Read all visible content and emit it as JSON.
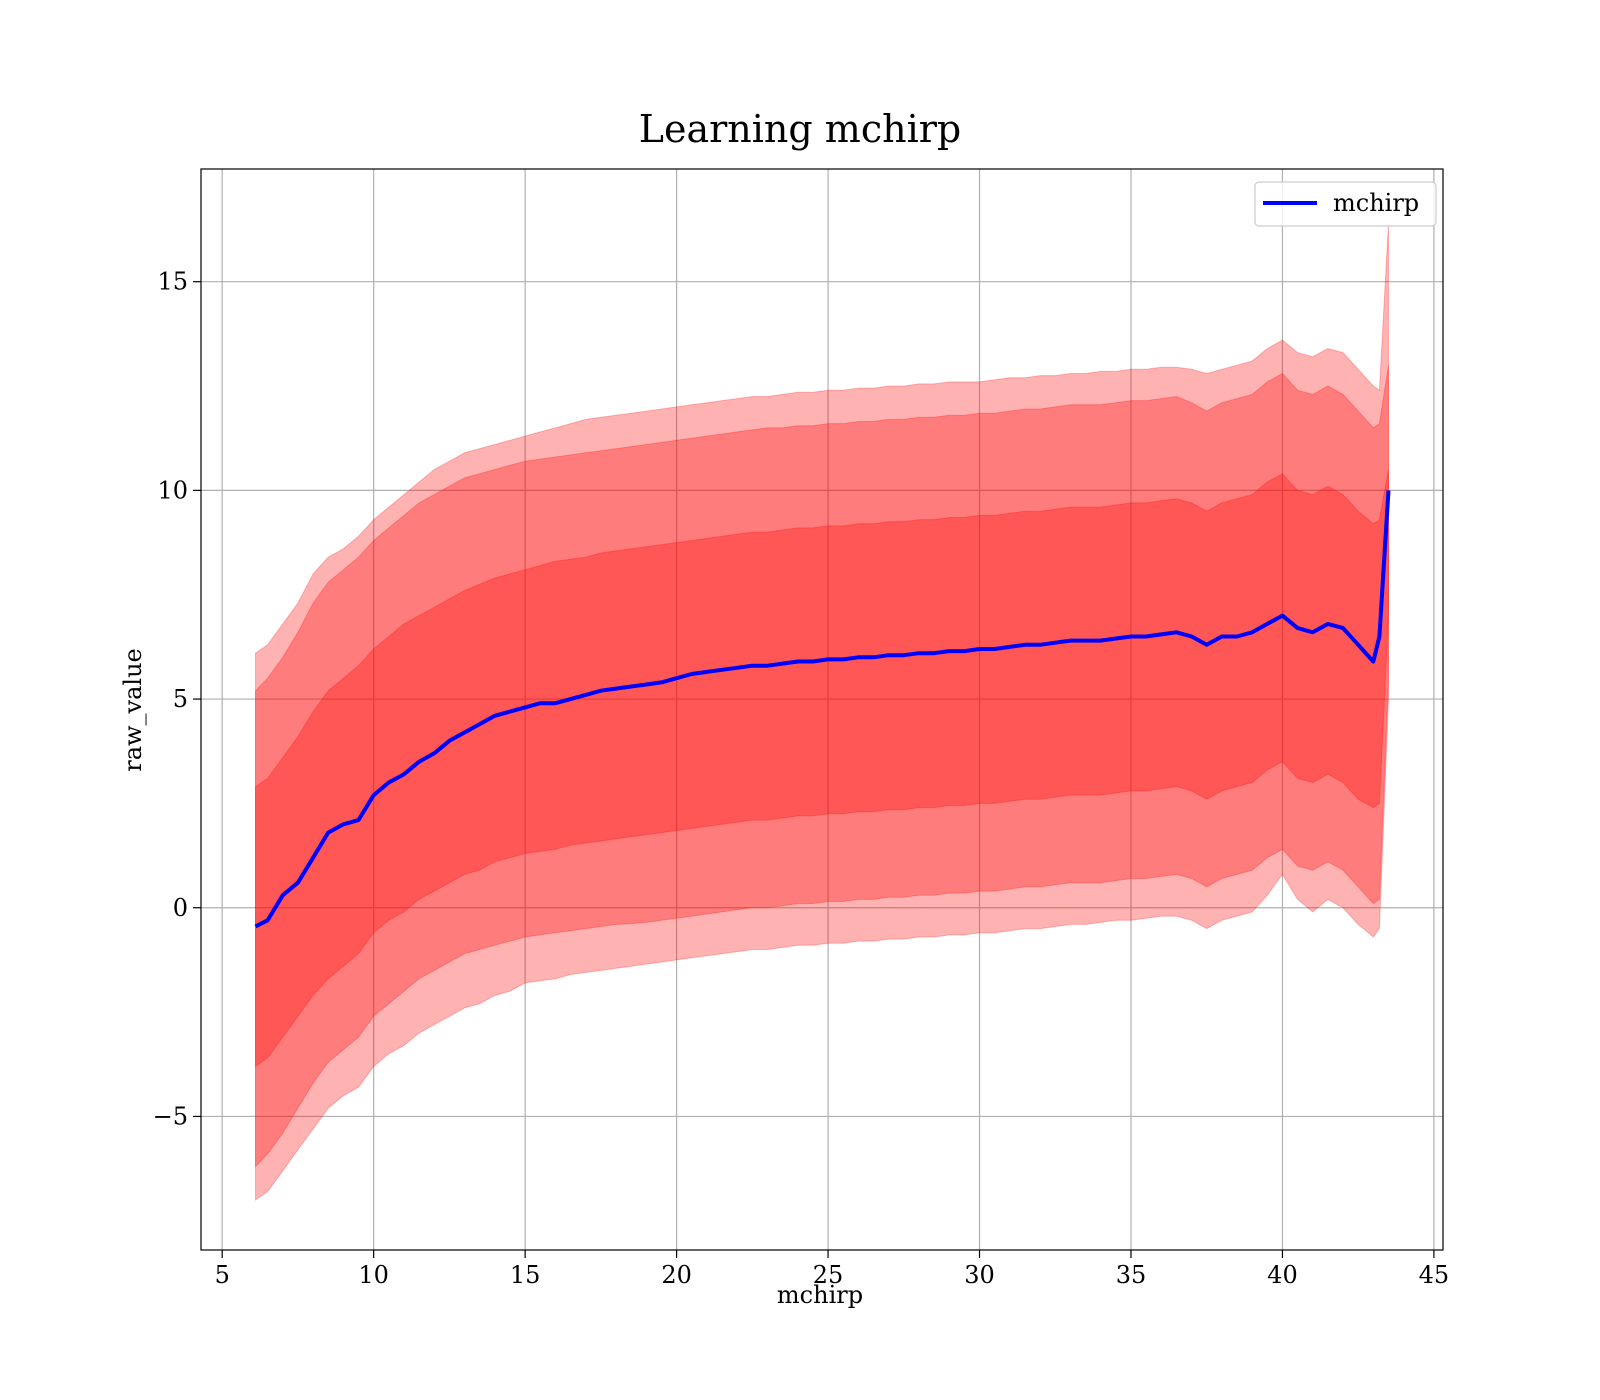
{
  "chart_data": {
    "type": "line",
    "title": "Learning mchirp",
    "xlabel": "mchirp",
    "ylabel": "raw_value",
    "xlim": [
      4.3,
      45.3
    ],
    "ylim": [
      -8.2,
      17.7
    ],
    "xticks": [
      5,
      10,
      15,
      20,
      25,
      30,
      35,
      40,
      45
    ],
    "yticks": [
      -5,
      0,
      5,
      10,
      15
    ],
    "ytick_labels": [
      "−5",
      "0",
      "5",
      "10",
      "15"
    ],
    "grid": true,
    "legend": {
      "position": "top-right",
      "entries": [
        "mchirp"
      ]
    },
    "colors": {
      "line": "#0000ff",
      "band": "#ff0000",
      "grid": "#b0b0b0"
    },
    "x": [
      6.1,
      6.5,
      7,
      7.5,
      8,
      8.5,
      9,
      9.5,
      10,
      10.5,
      11,
      11.5,
      12,
      12.5,
      13,
      13.5,
      14,
      14.5,
      15,
      15.5,
      16,
      16.5,
      17,
      17.5,
      18,
      18.5,
      19,
      19.5,
      20,
      20.5,
      21,
      21.5,
      22,
      22.5,
      23,
      23.5,
      24,
      24.5,
      25,
      25.5,
      26,
      26.5,
      27,
      27.5,
      28,
      28.5,
      29,
      29.5,
      30,
      30.5,
      31,
      31.5,
      32,
      32.5,
      33,
      33.5,
      34,
      34.5,
      35,
      35.5,
      36,
      36.5,
      37,
      37.5,
      38,
      38.5,
      39,
      39.5,
      40,
      40.5,
      41,
      41.5,
      42,
      42.5,
      43,
      43.2,
      43.5
    ],
    "series": [
      {
        "name": "mchirp",
        "values": [
          -0.45,
          -0.3,
          0.3,
          0.6,
          1.2,
          1.8,
          2.0,
          2.1,
          2.7,
          3.0,
          3.2,
          3.5,
          3.7,
          4.0,
          4.2,
          4.4,
          4.6,
          4.7,
          4.8,
          4.9,
          4.9,
          5.0,
          5.1,
          5.2,
          5.25,
          5.3,
          5.35,
          5.4,
          5.5,
          5.6,
          5.65,
          5.7,
          5.75,
          5.8,
          5.8,
          5.85,
          5.9,
          5.9,
          5.95,
          5.95,
          6.0,
          6.0,
          6.05,
          6.05,
          6.1,
          6.1,
          6.15,
          6.15,
          6.2,
          6.2,
          6.25,
          6.3,
          6.3,
          6.35,
          6.4,
          6.4,
          6.4,
          6.45,
          6.5,
          6.5,
          6.55,
          6.6,
          6.5,
          6.3,
          6.5,
          6.5,
          6.6,
          6.8,
          7.0,
          6.7,
          6.6,
          6.8,
          6.7,
          6.3,
          5.9,
          6.5,
          10.0
        ]
      }
    ],
    "bands": [
      {
        "lower": [
          -7.0,
          -6.8,
          -6.3,
          -5.8,
          -5.3,
          -4.8,
          -4.5,
          -4.3,
          -3.8,
          -3.5,
          -3.3,
          -3.0,
          -2.8,
          -2.6,
          -2.4,
          -2.3,
          -2.1,
          -2.0,
          -1.8,
          -1.75,
          -1.7,
          -1.6,
          -1.55,
          -1.5,
          -1.45,
          -1.4,
          -1.35,
          -1.3,
          -1.25,
          -1.2,
          -1.15,
          -1.1,
          -1.05,
          -1.0,
          -1.0,
          -0.95,
          -0.9,
          -0.9,
          -0.85,
          -0.85,
          -0.8,
          -0.8,
          -0.75,
          -0.75,
          -0.7,
          -0.7,
          -0.65,
          -0.65,
          -0.6,
          -0.6,
          -0.55,
          -0.5,
          -0.5,
          -0.45,
          -0.4,
          -0.4,
          -0.35,
          -0.3,
          -0.3,
          -0.25,
          -0.2,
          -0.2,
          -0.3,
          -0.5,
          -0.3,
          -0.2,
          -0.1,
          0.3,
          0.8,
          0.2,
          -0.1,
          0.2,
          0.0,
          -0.4,
          -0.7,
          -0.5,
          5.0
        ],
        "upper": [
          6.1,
          6.3,
          6.8,
          7.3,
          8.0,
          8.4,
          8.6,
          8.9,
          9.3,
          9.6,
          9.9,
          10.2,
          10.5,
          10.7,
          10.9,
          11.0,
          11.1,
          11.2,
          11.3,
          11.4,
          11.5,
          11.6,
          11.7,
          11.75,
          11.8,
          11.85,
          11.9,
          11.95,
          12.0,
          12.05,
          12.1,
          12.15,
          12.2,
          12.25,
          12.25,
          12.3,
          12.35,
          12.35,
          12.4,
          12.4,
          12.45,
          12.45,
          12.5,
          12.5,
          12.55,
          12.55,
          12.6,
          12.6,
          12.6,
          12.65,
          12.7,
          12.7,
          12.75,
          12.75,
          12.8,
          12.8,
          12.85,
          12.85,
          12.9,
          12.9,
          12.95,
          12.95,
          12.9,
          12.8,
          12.9,
          13.0,
          13.1,
          13.4,
          13.6,
          13.3,
          13.2,
          13.4,
          13.3,
          12.9,
          12.5,
          12.4,
          16.4
        ]
      },
      {
        "lower": [
          -6.2,
          -5.9,
          -5.4,
          -4.8,
          -4.2,
          -3.7,
          -3.4,
          -3.1,
          -2.6,
          -2.3,
          -2.0,
          -1.7,
          -1.5,
          -1.3,
          -1.1,
          -1.0,
          -0.9,
          -0.8,
          -0.7,
          -0.65,
          -0.6,
          -0.55,
          -0.5,
          -0.45,
          -0.4,
          -0.38,
          -0.35,
          -0.3,
          -0.25,
          -0.2,
          -0.15,
          -0.1,
          -0.05,
          0.0,
          0.0,
          0.05,
          0.1,
          0.1,
          0.15,
          0.15,
          0.2,
          0.2,
          0.25,
          0.25,
          0.3,
          0.3,
          0.35,
          0.35,
          0.4,
          0.4,
          0.45,
          0.5,
          0.5,
          0.55,
          0.6,
          0.6,
          0.6,
          0.65,
          0.7,
          0.7,
          0.75,
          0.8,
          0.7,
          0.5,
          0.7,
          0.8,
          0.9,
          1.2,
          1.4,
          1.0,
          0.9,
          1.1,
          0.9,
          0.5,
          0.1,
          0.2,
          5.5
        ],
        "upper": [
          5.2,
          5.5,
          6.0,
          6.6,
          7.3,
          7.8,
          8.1,
          8.4,
          8.8,
          9.1,
          9.4,
          9.7,
          9.9,
          10.1,
          10.3,
          10.4,
          10.5,
          10.6,
          10.7,
          10.75,
          10.8,
          10.85,
          10.9,
          10.95,
          11.0,
          11.05,
          11.1,
          11.15,
          11.2,
          11.25,
          11.3,
          11.35,
          11.4,
          11.45,
          11.5,
          11.5,
          11.55,
          11.55,
          11.6,
          11.6,
          11.65,
          11.65,
          11.7,
          11.7,
          11.75,
          11.75,
          11.8,
          11.8,
          11.85,
          11.85,
          11.9,
          11.95,
          11.95,
          12.0,
          12.05,
          12.05,
          12.05,
          12.1,
          12.15,
          12.15,
          12.2,
          12.25,
          12.1,
          11.9,
          12.1,
          12.2,
          12.3,
          12.6,
          12.8,
          12.4,
          12.3,
          12.5,
          12.3,
          11.9,
          11.5,
          11.6,
          13.0
        ]
      },
      {
        "lower": [
          -3.8,
          -3.6,
          -3.1,
          -2.6,
          -2.1,
          -1.7,
          -1.4,
          -1.1,
          -0.6,
          -0.3,
          -0.1,
          0.2,
          0.4,
          0.6,
          0.8,
          0.9,
          1.1,
          1.2,
          1.3,
          1.35,
          1.4,
          1.5,
          1.55,
          1.6,
          1.65,
          1.7,
          1.75,
          1.8,
          1.85,
          1.9,
          1.95,
          2.0,
          2.05,
          2.1,
          2.1,
          2.15,
          2.2,
          2.2,
          2.25,
          2.25,
          2.3,
          2.3,
          2.35,
          2.35,
          2.4,
          2.4,
          2.45,
          2.45,
          2.5,
          2.5,
          2.55,
          2.6,
          2.6,
          2.65,
          2.7,
          2.7,
          2.7,
          2.75,
          2.8,
          2.8,
          2.85,
          2.9,
          2.8,
          2.6,
          2.8,
          2.9,
          3.0,
          3.3,
          3.5,
          3.1,
          3.0,
          3.2,
          3.0,
          2.6,
          2.4,
          2.5,
          7.0
        ],
        "upper": [
          2.9,
          3.1,
          3.6,
          4.1,
          4.7,
          5.2,
          5.5,
          5.8,
          6.2,
          6.5,
          6.8,
          7.0,
          7.2,
          7.4,
          7.6,
          7.75,
          7.9,
          8.0,
          8.1,
          8.2,
          8.3,
          8.35,
          8.4,
          8.5,
          8.55,
          8.6,
          8.65,
          8.7,
          8.75,
          8.8,
          8.85,
          8.9,
          8.95,
          9.0,
          9.0,
          9.05,
          9.1,
          9.1,
          9.15,
          9.15,
          9.2,
          9.2,
          9.25,
          9.25,
          9.3,
          9.3,
          9.35,
          9.35,
          9.4,
          9.4,
          9.45,
          9.5,
          9.5,
          9.55,
          9.6,
          9.6,
          9.6,
          9.65,
          9.7,
          9.7,
          9.75,
          9.8,
          9.7,
          9.5,
          9.7,
          9.8,
          9.9,
          10.2,
          10.4,
          10.0,
          9.9,
          10.1,
          9.9,
          9.5,
          9.2,
          9.3,
          10.5
        ]
      }
    ]
  }
}
